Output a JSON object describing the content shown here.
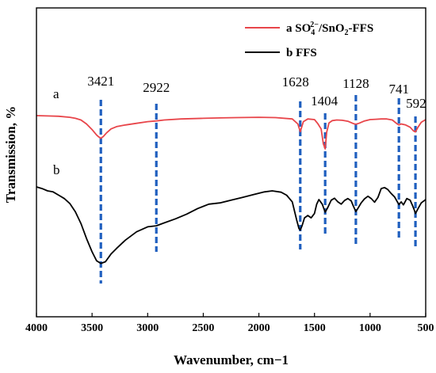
{
  "chart_data": {
    "type": "line",
    "title": "",
    "xlabel": "Wavenumber, cm−1",
    "ylabel": "Transmission, %",
    "xlim": [
      4000,
      500
    ],
    "x_reversed": true,
    "xticks": [
      4000,
      3500,
      3000,
      2500,
      2000,
      1500,
      1000,
      500
    ],
    "y_ticks_shown": false,
    "grid": false,
    "legend_position": "top-right",
    "legend": [
      {
        "series": "a",
        "prefix": "a SO",
        "sub1": "4",
        "sup": "2−",
        "mid": "/SnO",
        "sub2": "2",
        "suffix": "-FFS",
        "color": "#e8454a"
      },
      {
        "series": "b",
        "label": "b FFS",
        "color": "#000000"
      }
    ],
    "curve_labels": [
      {
        "text": "a",
        "series": "a"
      },
      {
        "text": "b",
        "series": "b"
      }
    ],
    "series": [
      {
        "name": "a SO₄²⁻/SnO₂-FFS",
        "color": "#e8454a",
        "x": [
          4000,
          3900,
          3800,
          3700,
          3650,
          3600,
          3550,
          3500,
          3460,
          3440,
          3421,
          3400,
          3370,
          3330,
          3280,
          3200,
          3100,
          3000,
          2922,
          2850,
          2700,
          2500,
          2350,
          2200,
          2000,
          1850,
          1700,
          1650,
          1628,
          1600,
          1560,
          1500,
          1470,
          1440,
          1420,
          1404,
          1390,
          1370,
          1340,
          1300,
          1250,
          1200,
          1150,
          1128,
          1100,
          1050,
          1000,
          950,
          900,
          850,
          800,
          760,
          741,
          720,
          680,
          640,
          610,
          592,
          570,
          540,
          500
        ],
        "y": [
          0.0,
          0.1,
          0.2,
          0.5,
          0.8,
          1.3,
          2.5,
          4.2,
          5.8,
          6.4,
          6.8,
          6.3,
          5.2,
          4.0,
          3.3,
          2.8,
          2.3,
          1.8,
          1.6,
          1.3,
          1.0,
          0.8,
          0.7,
          0.6,
          0.5,
          0.6,
          1.0,
          2.5,
          4.8,
          1.8,
          1.0,
          1.2,
          2.4,
          4.0,
          8.5,
          10.0,
          5.0,
          2.2,
          1.5,
          1.3,
          1.4,
          1.7,
          2.4,
          2.6,
          2.3,
          1.6,
          1.2,
          1.1,
          1.0,
          1.0,
          1.3,
          2.4,
          2.8,
          2.5,
          2.8,
          3.5,
          4.6,
          4.9,
          3.5,
          2.0,
          1.2
        ]
      },
      {
        "name": "b FFS",
        "color": "#000000",
        "x": [
          4000,
          3950,
          3900,
          3850,
          3800,
          3750,
          3700,
          3650,
          3600,
          3550,
          3500,
          3460,
          3421,
          3380,
          3330,
          3280,
          3200,
          3100,
          3000,
          2922,
          2850,
          2750,
          2650,
          2550,
          2450,
          2350,
          2250,
          2150,
          2050,
          1950,
          1880,
          1800,
          1750,
          1700,
          1660,
          1640,
          1628,
          1610,
          1590,
          1560,
          1530,
          1500,
          1480,
          1460,
          1430,
          1404,
          1380,
          1350,
          1320,
          1290,
          1260,
          1230,
          1200,
          1170,
          1150,
          1128,
          1110,
          1080,
          1050,
          1020,
          990,
          960,
          930,
          900,
          870,
          840,
          810,
          780,
          760,
          741,
          720,
          700,
          670,
          640,
          620,
          600,
          592,
          570,
          540,
          500
        ],
        "y": [
          0.0,
          0.5,
          1.2,
          1.5,
          2.5,
          3.5,
          5.0,
          7.5,
          11.0,
          15.5,
          19.5,
          22.2,
          23.0,
          22.5,
          20.2,
          18.5,
          16.0,
          13.5,
          12.0,
          11.7,
          10.8,
          9.6,
          8.2,
          6.5,
          5.2,
          4.8,
          4.0,
          3.2,
          2.3,
          1.5,
          1.2,
          1.6,
          2.5,
          4.5,
          10.0,
          12.5,
          13.0,
          11.5,
          9.3,
          8.6,
          9.3,
          8.0,
          5.2,
          3.8,
          5.2,
          7.6,
          6.2,
          4.0,
          3.4,
          4.5,
          5.2,
          4.1,
          3.5,
          4.2,
          5.8,
          7.4,
          6.5,
          4.8,
          3.6,
          2.8,
          3.5,
          4.6,
          3.2,
          0.5,
          0.2,
          0.8,
          2.0,
          3.0,
          4.2,
          5.3,
          4.5,
          5.4,
          3.5,
          4.0,
          5.5,
          7.2,
          8.0,
          6.6,
          4.8,
          3.8
        ]
      }
    ],
    "annotations": [
      {
        "text": "3421",
        "x": 3421
      },
      {
        "text": "2922",
        "x": 2922
      },
      {
        "text": "1628",
        "x": 1628
      },
      {
        "text": "1404",
        "x": 1404
      },
      {
        "text": "1128",
        "x": 1128
      },
      {
        "text": "741",
        "x": 741
      },
      {
        "text": "592",
        "x": 592
      }
    ],
    "annotation_line_color": "#1f5fbf"
  }
}
